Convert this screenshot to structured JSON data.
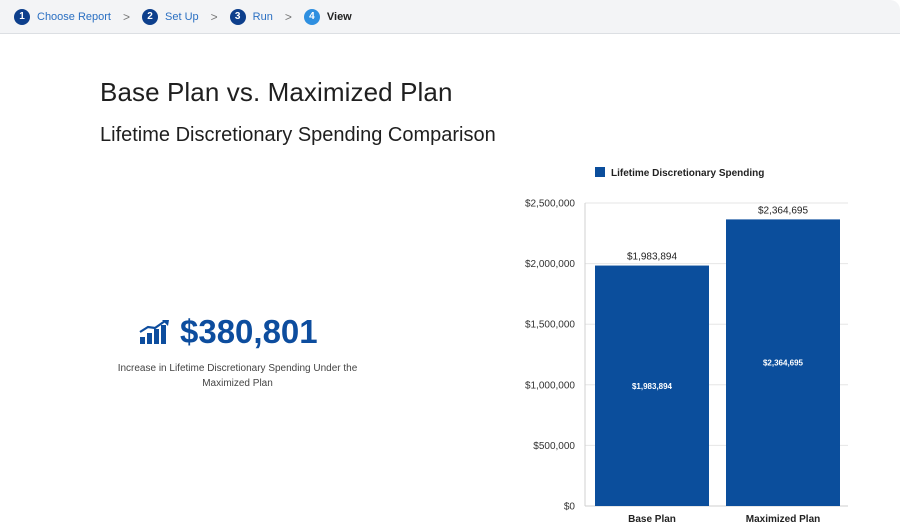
{
  "stepper": {
    "steps": [
      {
        "num": "1",
        "label": "Choose Report"
      },
      {
        "num": "2",
        "label": "Set Up"
      },
      {
        "num": "3",
        "label": "Run"
      },
      {
        "num": "4",
        "label": "View"
      }
    ],
    "separator": ">"
  },
  "header": {
    "title": "Base Plan vs. Maximized Plan",
    "subtitle": "Lifetime Discretionary Spending Comparison"
  },
  "kpi": {
    "icon": "trending-up-chart-icon",
    "value": "$380,801",
    "caption": "Increase in Lifetime Discretionary Spending Under the Maximized Plan"
  },
  "colors": {
    "primary": "#0d4d9e",
    "bar": "#0b4e9c",
    "step_done": "#0d3f8c",
    "step_active": "#2e8fe0",
    "link": "#2a6fc2"
  },
  "chart_data": {
    "type": "bar",
    "categories": [
      "Base Plan",
      "Maximized Plan"
    ],
    "series": [
      {
        "name": "Lifetime Discretionary Spending",
        "values": [
          1983894,
          2364695
        ]
      }
    ],
    "value_labels": [
      "$1,983,894",
      "$2,364,695"
    ],
    "y_ticks": [
      "$0",
      "$500,000",
      "$1,000,000",
      "$1,500,000",
      "$2,000,000",
      "$2,500,000"
    ],
    "ylim": [
      0,
      2500000
    ],
    "legend_position": "top",
    "grid": true
  }
}
